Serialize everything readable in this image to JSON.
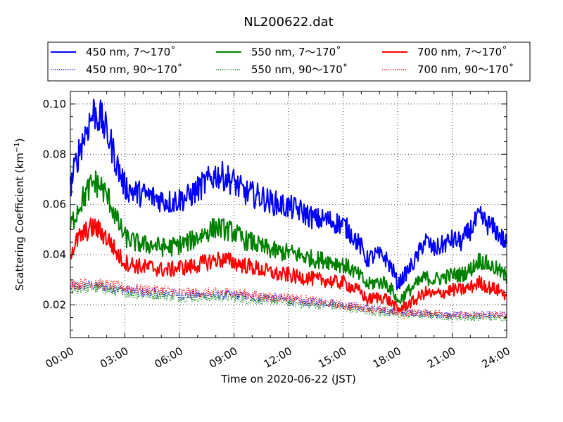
{
  "chart_data": {
    "type": "line",
    "title": "NL200622.dat",
    "xlabel": "Time on 2020-06-22 (JST)",
    "ylabel": "Scattering Coefficient (km",
    "ylabel_sup": "−1",
    "ylabel_close": ")",
    "xlim": [
      0,
      24
    ],
    "ylim": [
      0.007,
      0.105
    ],
    "x_ticks": [
      0,
      3,
      6,
      9,
      12,
      15,
      18,
      21,
      24
    ],
    "x_tick_labels": [
      "00:00",
      "03:00",
      "06:00",
      "09:00",
      "12:00",
      "15:00",
      "18:00",
      "21:00",
      "24:00"
    ],
    "y_ticks": [
      0.02,
      0.04,
      0.06,
      0.08,
      0.1
    ],
    "y_tick_labels": [
      "0.02",
      "0.04",
      "0.06",
      "0.08",
      "0.10"
    ],
    "grid": true,
    "legend_position": "top",
    "series": [
      {
        "name": "450 nm, 7～170˚",
        "color": "#0000ff",
        "style": "solid",
        "x": [
          0,
          0.5,
          1,
          1.3,
          1.7,
          2.2,
          2.6,
          3,
          3.5,
          4,
          4.5,
          5,
          5.5,
          6,
          6.5,
          7,
          7.5,
          8,
          8.5,
          9,
          9.5,
          10,
          10.5,
          11,
          11.5,
          12,
          12.5,
          13,
          13.5,
          14,
          14.5,
          15,
          15.5,
          16,
          16.3,
          16.8,
          17.3,
          17.8,
          18,
          18.5,
          19,
          19.5,
          20,
          20.5,
          21,
          21.5,
          22,
          22.5,
          23,
          23.5,
          24
        ],
        "y": [
          0.067,
          0.082,
          0.092,
          0.097,
          0.094,
          0.085,
          0.075,
          0.067,
          0.065,
          0.064,
          0.063,
          0.062,
          0.061,
          0.062,
          0.063,
          0.066,
          0.069,
          0.072,
          0.071,
          0.069,
          0.065,
          0.064,
          0.063,
          0.061,
          0.06,
          0.059,
          0.058,
          0.056,
          0.054,
          0.054,
          0.053,
          0.052,
          0.048,
          0.043,
          0.038,
          0.04,
          0.039,
          0.033,
          0.028,
          0.033,
          0.038,
          0.046,
          0.042,
          0.044,
          0.046,
          0.045,
          0.05,
          0.055,
          0.052,
          0.049,
          0.044
        ]
      },
      {
        "name": "450 nm, 90～170˚",
        "color": "#0000ff",
        "style": "dotted",
        "x": [
          0,
          1,
          2,
          3,
          4,
          5,
          6,
          7,
          8,
          9,
          10,
          11,
          12,
          13,
          14,
          15,
          16,
          17,
          18,
          19,
          20,
          21,
          22,
          23,
          24
        ],
        "y": [
          0.027,
          0.028,
          0.027,
          0.026,
          0.025,
          0.025,
          0.024,
          0.024,
          0.024,
          0.024,
          0.023,
          0.023,
          0.022,
          0.021,
          0.021,
          0.02,
          0.019,
          0.018,
          0.017,
          0.017,
          0.016,
          0.016,
          0.016,
          0.016,
          0.016
        ]
      },
      {
        "name": "550 nm, 7～170˚",
        "color": "#008000",
        "style": "solid",
        "x": [
          0,
          0.5,
          1,
          1.3,
          1.7,
          2.2,
          2.6,
          3,
          3.5,
          4,
          4.5,
          5,
          5.5,
          6,
          6.5,
          7,
          7.5,
          8,
          8.5,
          9,
          9.5,
          10,
          10.5,
          11,
          11.5,
          12,
          12.5,
          13,
          13.5,
          14,
          14.5,
          15,
          15.5,
          16,
          16.3,
          16.8,
          17.3,
          17.8,
          18,
          18.5,
          19,
          19.5,
          20,
          20.5,
          21,
          21.5,
          22,
          22.5,
          23,
          23.5,
          24
        ],
        "y": [
          0.051,
          0.06,
          0.066,
          0.069,
          0.067,
          0.061,
          0.053,
          0.047,
          0.045,
          0.044,
          0.044,
          0.043,
          0.043,
          0.044,
          0.045,
          0.047,
          0.049,
          0.051,
          0.05,
          0.049,
          0.046,
          0.045,
          0.043,
          0.042,
          0.041,
          0.041,
          0.04,
          0.039,
          0.038,
          0.038,
          0.037,
          0.036,
          0.034,
          0.031,
          0.028,
          0.029,
          0.029,
          0.025,
          0.021,
          0.025,
          0.028,
          0.031,
          0.03,
          0.031,
          0.032,
          0.032,
          0.034,
          0.038,
          0.036,
          0.034,
          0.031
        ]
      },
      {
        "name": "550 nm, 90～170˚",
        "color": "#008000",
        "style": "dotted",
        "x": [
          0,
          1,
          2,
          3,
          4,
          5,
          6,
          7,
          8,
          9,
          10,
          11,
          12,
          13,
          14,
          15,
          16,
          17,
          18,
          19,
          20,
          21,
          22,
          23,
          24
        ],
        "y": [
          0.026,
          0.027,
          0.026,
          0.025,
          0.024,
          0.024,
          0.023,
          0.023,
          0.023,
          0.023,
          0.022,
          0.022,
          0.021,
          0.02,
          0.02,
          0.019,
          0.018,
          0.017,
          0.016,
          0.016,
          0.016,
          0.015,
          0.015,
          0.015,
          0.015
        ]
      },
      {
        "name": "700 nm, 7～170˚",
        "color": "#ff0000",
        "style": "solid",
        "x": [
          0,
          0.5,
          1,
          1.3,
          1.7,
          2.2,
          2.6,
          3,
          3.5,
          4,
          4.5,
          5,
          5.5,
          6,
          6.5,
          7,
          7.5,
          8,
          8.5,
          9,
          9.5,
          10,
          10.5,
          11,
          11.5,
          12,
          12.5,
          13,
          13.5,
          14,
          14.5,
          15,
          15.5,
          16,
          16.3,
          16.8,
          17.3,
          17.8,
          18,
          18.5,
          19,
          19.5,
          20,
          20.5,
          21,
          21.5,
          22,
          22.5,
          23,
          23.5,
          24
        ],
        "y": [
          0.041,
          0.047,
          0.05,
          0.051,
          0.049,
          0.045,
          0.04,
          0.037,
          0.036,
          0.035,
          0.035,
          0.034,
          0.034,
          0.035,
          0.035,
          0.036,
          0.037,
          0.038,
          0.038,
          0.037,
          0.036,
          0.035,
          0.034,
          0.033,
          0.032,
          0.032,
          0.031,
          0.031,
          0.03,
          0.03,
          0.029,
          0.029,
          0.027,
          0.025,
          0.022,
          0.023,
          0.023,
          0.02,
          0.018,
          0.02,
          0.022,
          0.025,
          0.024,
          0.025,
          0.026,
          0.026,
          0.027,
          0.029,
          0.027,
          0.026,
          0.024
        ]
      },
      {
        "name": "700 nm, 90～170˚",
        "color": "#ff0000",
        "style": "dotted",
        "x": [
          0,
          1,
          2,
          3,
          4,
          5,
          6,
          7,
          8,
          9,
          10,
          11,
          12,
          13,
          14,
          15,
          16,
          17,
          18,
          19,
          20,
          21,
          22,
          23,
          24
        ],
        "y": [
          0.028,
          0.029,
          0.028,
          0.027,
          0.026,
          0.026,
          0.025,
          0.025,
          0.025,
          0.025,
          0.024,
          0.023,
          0.023,
          0.022,
          0.021,
          0.02,
          0.019,
          0.018,
          0.017,
          0.017,
          0.017,
          0.016,
          0.016,
          0.016,
          0.016
        ]
      }
    ]
  }
}
